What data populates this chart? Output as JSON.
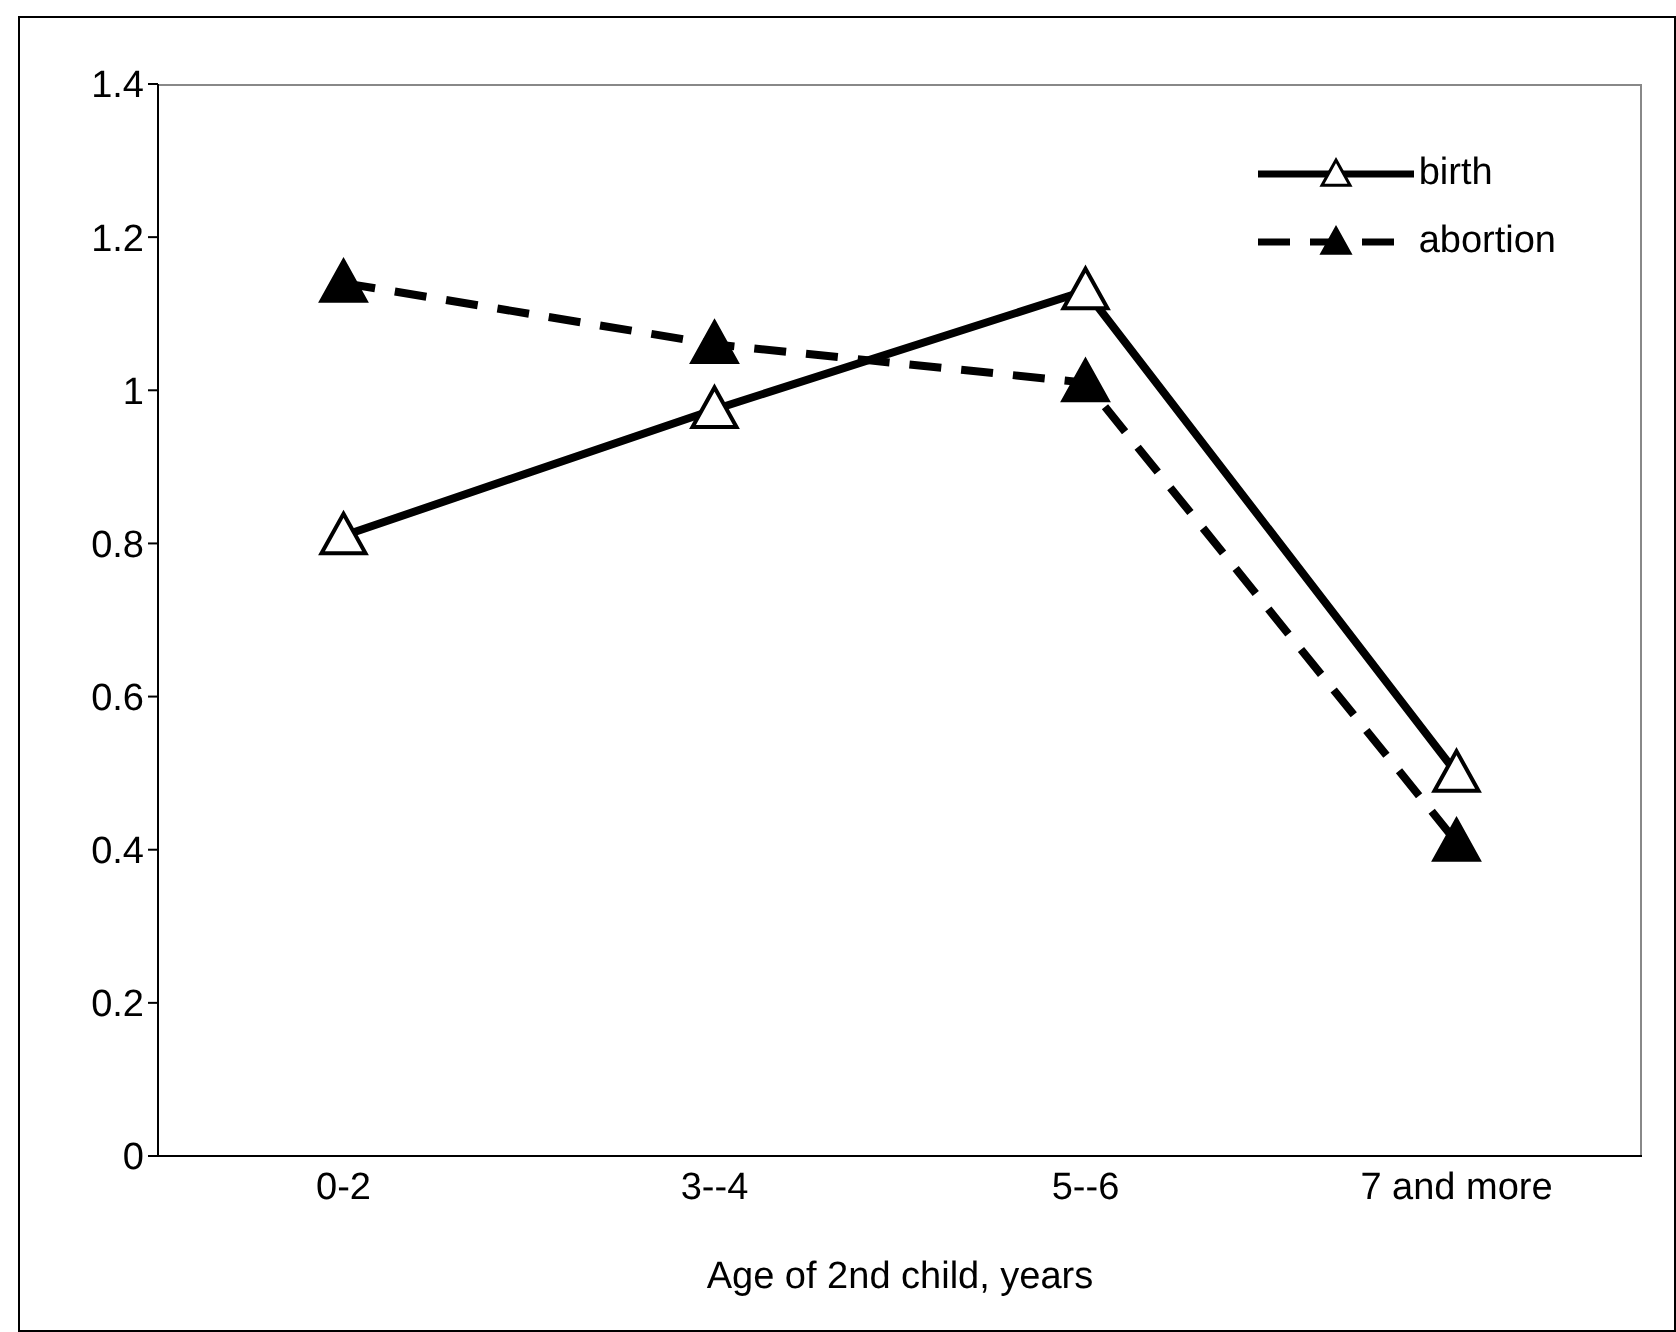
{
  "chart_data": {
    "type": "line",
    "xlabel": "Age of 2nd child, years",
    "categories": [
      "0-2",
      "3--4",
      "5--6",
      "7 and more"
    ],
    "series": [
      {
        "name": "birth",
        "color": "#000000",
        "values": [
          0.81,
          0.975,
          1.13,
          0.5
        ],
        "line_style": "solid"
      },
      {
        "name": "abortion",
        "color": "#000000",
        "values": [
          1.14,
          1.06,
          1.01,
          0.41
        ],
        "line_style": "dashed"
      }
    ],
    "ylim": [
      0,
      1.4
    ],
    "yticks": [
      0,
      0.2,
      0.4,
      0.6,
      0.8,
      1,
      1.2,
      1.4
    ],
    "marker": "triangle",
    "legend": "top right",
    "grid": false
  }
}
